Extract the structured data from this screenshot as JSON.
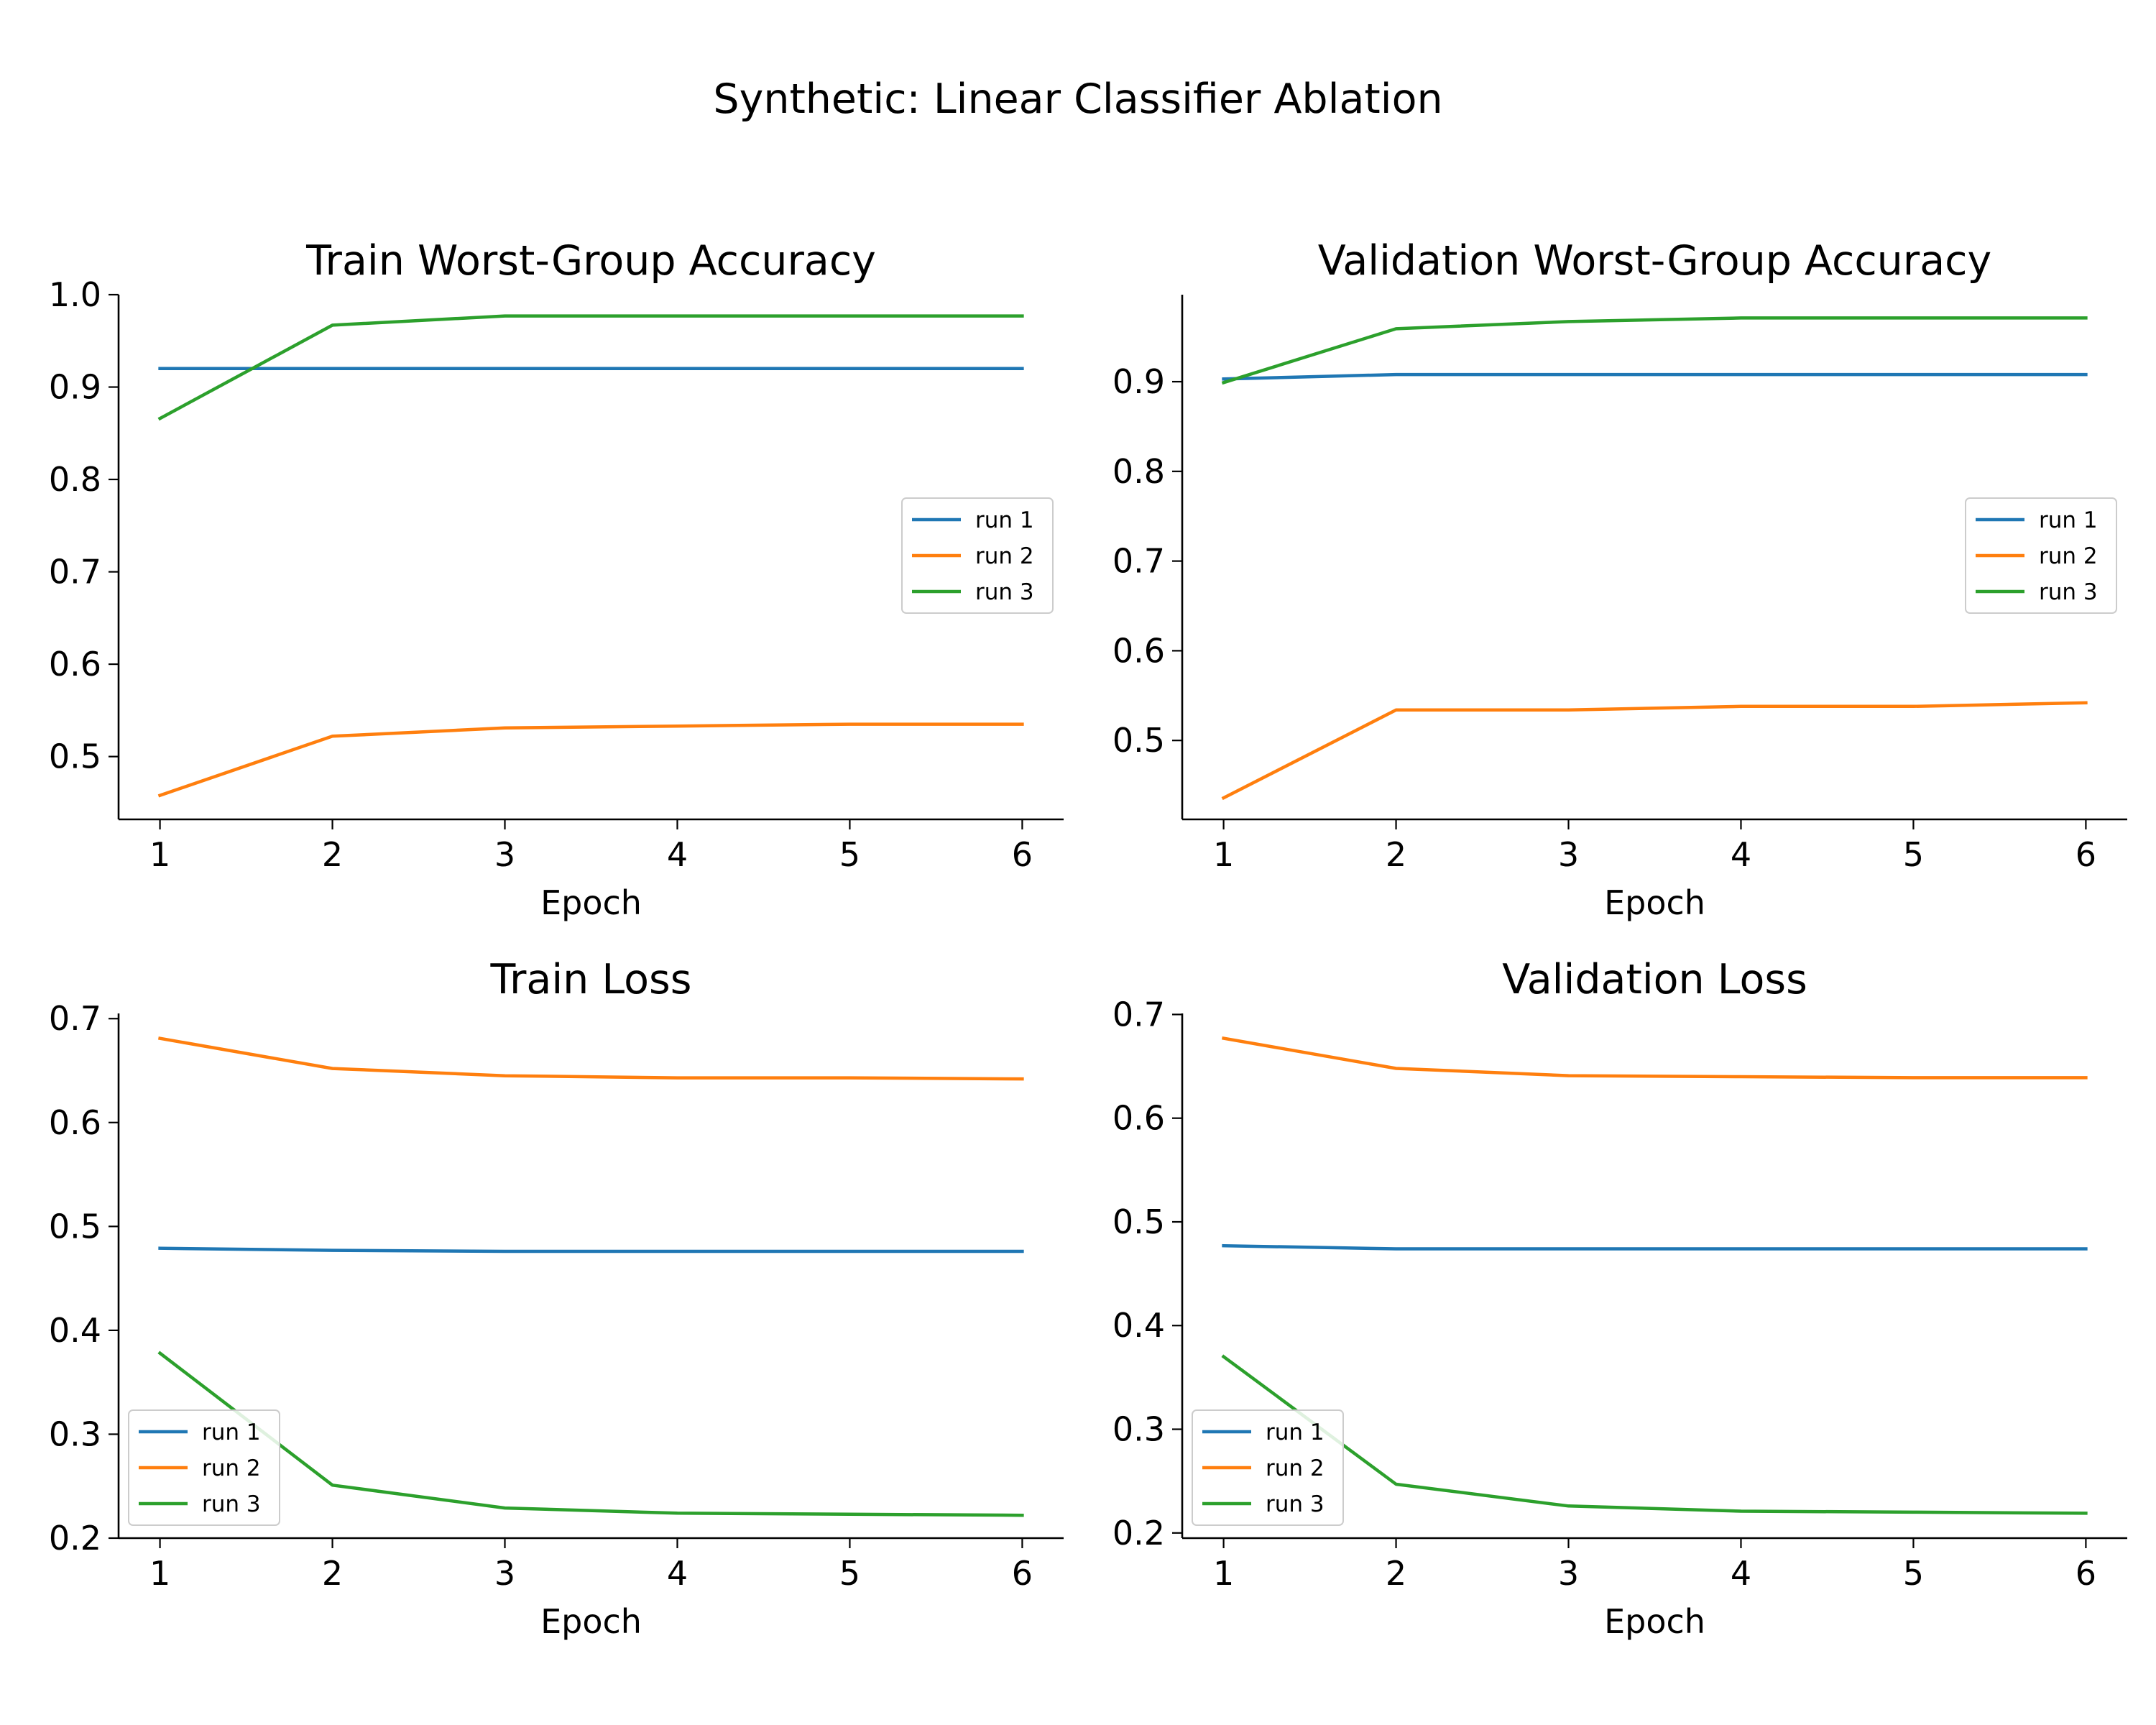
{
  "figure": {
    "suptitle": "Synthetic: Linear Classifier Ablation"
  },
  "colors": {
    "run1": "#1f77b4",
    "run2": "#ff7f0e",
    "run3": "#2ca02c"
  },
  "chart_data": [
    {
      "type": "line",
      "title": "Train Worst-Group Accuracy",
      "xlabel": "Epoch",
      "ylabel": "",
      "x": [
        1,
        2,
        3,
        4,
        5,
        6
      ],
      "xlim": [
        0.76,
        6.24
      ],
      "ylim": [
        0.432,
        1.0
      ],
      "yticks": [
        "1.0",
        "0.9",
        "0.8",
        "0.7",
        "0.6",
        "0.5"
      ],
      "ytick_values": [
        1.0,
        0.9,
        0.8,
        0.7,
        0.6,
        0.5
      ],
      "legend": "center-right",
      "grid": false,
      "series": [
        {
          "name": "run 1",
          "color": "#1f77b4",
          "values": [
            0.92,
            0.92,
            0.92,
            0.92,
            0.92,
            0.92
          ]
        },
        {
          "name": "run 2",
          "color": "#ff7f0e",
          "values": [
            0.458,
            0.522,
            0.531,
            0.533,
            0.535,
            0.535
          ]
        },
        {
          "name": "run 3",
          "color": "#2ca02c",
          "values": [
            0.866,
            0.967,
            0.977,
            0.977,
            0.977,
            0.977
          ]
        }
      ]
    },
    {
      "type": "line",
      "title": "Validation Worst-Group Accuracy",
      "xlabel": "Epoch",
      "ylabel": "",
      "x": [
        1,
        2,
        3,
        4,
        5,
        6
      ],
      "xlim": [
        0.76,
        6.24
      ],
      "ylim": [
        0.412,
        0.997
      ],
      "yticks": [
        "0.9",
        "0.8",
        "0.7",
        "0.6",
        "0.5"
      ],
      "ytick_values": [
        0.9,
        0.8,
        0.7,
        0.6,
        0.5
      ],
      "legend": "center-right",
      "grid": false,
      "series": [
        {
          "name": "run 1",
          "color": "#1f77b4",
          "values": [
            0.903,
            0.908,
            0.908,
            0.908,
            0.908,
            0.908
          ]
        },
        {
          "name": "run 2",
          "color": "#ff7f0e",
          "values": [
            0.436,
            0.534,
            0.534,
            0.538,
            0.538,
            0.542
          ]
        },
        {
          "name": "run 3",
          "color": "#2ca02c",
          "values": [
            0.899,
            0.959,
            0.967,
            0.971,
            0.971,
            0.971
          ]
        }
      ]
    },
    {
      "type": "line",
      "title": "Train Loss",
      "xlabel": "Epoch",
      "ylabel": "",
      "x": [
        1,
        2,
        3,
        4,
        5,
        6
      ],
      "xlim": [
        0.76,
        6.24
      ],
      "ylim": [
        0.2,
        0.705
      ],
      "yticks": [
        "0.7",
        "0.6",
        "0.5",
        "0.4",
        "0.3",
        "0.2"
      ],
      "ytick_values": [
        0.7,
        0.6,
        0.5,
        0.4,
        0.3,
        0.2
      ],
      "legend": "lower-left",
      "grid": false,
      "series": [
        {
          "name": "run 1",
          "color": "#1f77b4",
          "values": [
            0.479,
            0.477,
            0.476,
            0.476,
            0.476,
            0.476
          ]
        },
        {
          "name": "run 2",
          "color": "#ff7f0e",
          "values": [
            0.681,
            0.652,
            0.645,
            0.643,
            0.643,
            0.642
          ]
        },
        {
          "name": "run 3",
          "color": "#2ca02c",
          "values": [
            0.378,
            0.251,
            0.229,
            0.224,
            0.223,
            0.222
          ]
        }
      ]
    },
    {
      "type": "line",
      "title": "Validation Loss",
      "xlabel": "Epoch",
      "ylabel": "",
      "x": [
        1,
        2,
        3,
        4,
        5,
        6
      ],
      "xlim": [
        0.76,
        6.24
      ],
      "ylim": [
        0.195,
        0.701
      ],
      "yticks": [
        "0.7",
        "0.6",
        "0.5",
        "0.4",
        "0.3",
        "0.2"
      ],
      "ytick_values": [
        0.7,
        0.6,
        0.5,
        0.4,
        0.3,
        0.2
      ],
      "legend": "lower-left",
      "grid": false,
      "series": [
        {
          "name": "run 1",
          "color": "#1f77b4",
          "values": [
            0.477,
            0.474,
            0.474,
            0.474,
            0.474,
            0.474
          ]
        },
        {
          "name": "run 2",
          "color": "#ff7f0e",
          "values": [
            0.677,
            0.648,
            0.641,
            0.64,
            0.639,
            0.639
          ]
        },
        {
          "name": "run 3",
          "color": "#2ca02c",
          "values": [
            0.37,
            0.247,
            0.226,
            0.221,
            0.22,
            0.219
          ]
        }
      ]
    }
  ]
}
